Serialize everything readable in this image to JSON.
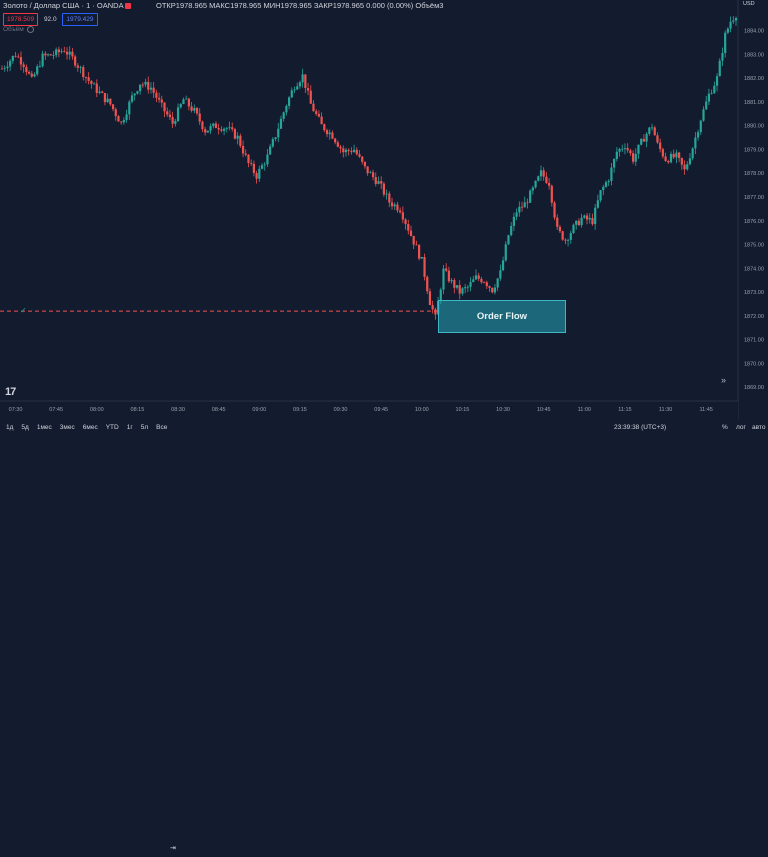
{
  "header": {
    "symbol": "Золото / Доллар США · 1 · OANDA",
    "ohlc": "ОТКР1978.965  МАКС1978.965  МИН1978.965  ЗАКР1978.965  0.000 (0.00%)  Объём3",
    "bid": "1978.509",
    "spread": "92.0",
    "ask": "1979.429",
    "volume_label": "Объём",
    "currency": "USD"
  },
  "annotation": {
    "order_flow": "Order Flow",
    "checkmark": "✓"
  },
  "bottom": {
    "timeframes": [
      "1д",
      "5д",
      "1мес",
      "3мес",
      "6мес",
      "YTD",
      "1г",
      "5л",
      "Все"
    ],
    "clock": "23:39:38 (UTC+3)",
    "percent": "%",
    "log": "лог",
    "auto": "авто"
  },
  "colors": {
    "background": "#131b2e",
    "up": "#26a69a",
    "down": "#ef5350",
    "order_flow_box": "#26a6ba",
    "dashed_line": "#ef5350"
  },
  "chart_data": {
    "type": "candlestick",
    "y_ticks": [
      1884.0,
      1883.0,
      1882.0,
      1881.0,
      1880.0,
      1879.0,
      1878.0,
      1877.0,
      1876.0,
      1875.0,
      1874.0,
      1873.0,
      1872.0,
      1871.0,
      1870.0,
      1869.0
    ],
    "x_ticks": [
      "07:30",
      "07:45",
      "08:00",
      "08:15",
      "08:30",
      "08:45",
      "09:00",
      "09:15",
      "09:30",
      "09:45",
      "10:00",
      "10:15",
      "10:30",
      "10:45",
      "11:00",
      "11:15",
      "11:30",
      "11:45"
    ],
    "ylim": [
      1868.5,
      1884.7
    ],
    "dashed_level": 1872.2,
    "price_path": [
      [
        "07:25",
        1882.4
      ],
      [
        "07:30",
        1883.0
      ],
      [
        "07:33",
        1882.6
      ],
      [
        "07:36",
        1881.9
      ],
      [
        "07:40",
        1882.9
      ],
      [
        "07:44",
        1883.0
      ],
      [
        "07:48",
        1883.2
      ],
      [
        "07:52",
        1882.7
      ],
      [
        "07:57",
        1881.9
      ],
      [
        "08:00",
        1881.5
      ],
      [
        "08:05",
        1880.9
      ],
      [
        "08:09",
        1880.1
      ],
      [
        "08:13",
        1881.2
      ],
      [
        "08:16",
        1881.8
      ],
      [
        "08:20",
        1881.6
      ],
      [
        "08:24",
        1880.8
      ],
      [
        "08:28",
        1880.1
      ],
      [
        "08:32",
        1881.1
      ],
      [
        "08:36",
        1880.6
      ],
      [
        "08:40",
        1879.8
      ],
      [
        "08:44",
        1880.0
      ],
      [
        "08:48",
        1879.9
      ],
      [
        "08:52",
        1879.5
      ],
      [
        "08:56",
        1878.4
      ],
      [
        "08:59",
        1877.9
      ],
      [
        "09:03",
        1878.7
      ],
      [
        "09:06",
        1879.6
      ],
      [
        "09:10",
        1880.9
      ],
      [
        "09:13",
        1881.7
      ],
      [
        "09:16",
        1882.1
      ],
      [
        "09:19",
        1880.9
      ],
      [
        "09:23",
        1880.0
      ],
      [
        "09:27",
        1879.6
      ],
      [
        "09:31",
        1878.9
      ],
      [
        "09:35",
        1879.0
      ],
      [
        "09:39",
        1878.2
      ],
      [
        "09:44",
        1877.6
      ],
      [
        "09:48",
        1876.8
      ],
      [
        "09:52",
        1876.5
      ],
      [
        "09:56",
        1875.4
      ],
      [
        "10:00",
        1874.3
      ],
      [
        "10:03",
        1872.6
      ],
      [
        "10:05",
        1871.9
      ],
      [
        "10:08",
        1873.9
      ],
      [
        "10:11",
        1873.4
      ],
      [
        "10:14",
        1873.0
      ],
      [
        "10:17",
        1873.2
      ],
      [
        "10:20",
        1873.6
      ],
      [
        "10:23",
        1873.5
      ],
      [
        "10:26",
        1873.1
      ],
      [
        "10:29",
        1873.8
      ],
      [
        "10:32",
        1875.4
      ],
      [
        "10:35",
        1876.4
      ],
      [
        "10:38",
        1876.7
      ],
      [
        "10:41",
        1877.3
      ],
      [
        "10:44",
        1878.0
      ],
      [
        "10:47",
        1877.6
      ],
      [
        "10:50",
        1875.6
      ],
      [
        "10:53",
        1875.2
      ],
      [
        "10:56",
        1875.7
      ],
      [
        "10:59",
        1876.1
      ],
      [
        "11:03",
        1876.0
      ],
      [
        "11:06",
        1877.2
      ],
      [
        "11:09",
        1877.8
      ],
      [
        "11:12",
        1878.9
      ],
      [
        "11:15",
        1879.2
      ],
      [
        "11:18",
        1878.6
      ],
      [
        "11:22",
        1879.5
      ],
      [
        "11:25",
        1880.0
      ],
      [
        "11:27",
        1879.2
      ],
      [
        "11:30",
        1878.6
      ],
      [
        "11:34",
        1878.7
      ],
      [
        "11:37",
        1878.1
      ],
      [
        "11:40",
        1879.1
      ],
      [
        "11:43",
        1880.3
      ],
      [
        "11:46",
        1881.3
      ],
      [
        "11:49",
        1882.0
      ],
      [
        "11:52",
        1883.8
      ],
      [
        "11:54",
        1884.4
      ],
      [
        "11:56",
        1884.7
      ]
    ]
  }
}
